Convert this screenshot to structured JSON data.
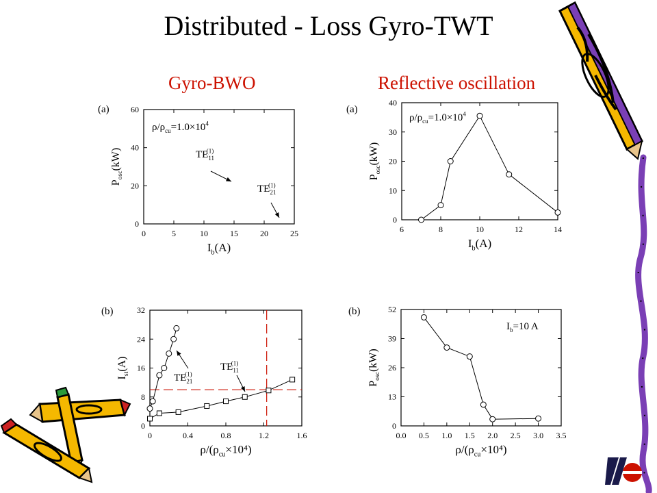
{
  "title": "Distributed - Loss Gyro-TWT",
  "subtitles": {
    "left": "Gyro-BWO",
    "right": "Reflective  oscillation"
  },
  "panel_labels": {
    "tl": "(a)",
    "tr": "(a)",
    "bl": "(b)",
    "br": "(b)"
  },
  "colors": {
    "subtitle": "#cc1100",
    "dashed": "#cc1100",
    "axes": "#000000"
  },
  "decorations": [
    "pencil-icon",
    "pencil-icon",
    "pencil-icon",
    "logo-icon"
  ],
  "chart_data": [
    {
      "id": "tl",
      "type": "scatter",
      "xlim": [
        0,
        25
      ],
      "ylim": [
        0,
        60
      ],
      "xticks": [
        0,
        5,
        10,
        15,
        20,
        25
      ],
      "yticks": [
        0,
        20,
        40,
        60
      ],
      "xlabel_main": "I",
      "xlabel_sub": "b",
      "xlabel_unit": "(A)",
      "ylabel_main": "P",
      "ylabel_sub": "osc",
      "ylabel_unit": "(kW)",
      "series": [],
      "annotations": [
        {
          "text": "ρ/ρ",
          "sub": "cu",
          "rest": "=1.0×10",
          "sup": "4"
        },
        {
          "text": "TE",
          "sub": "11",
          "sup": "(1)"
        },
        {
          "text": "TE",
          "sub": "21",
          "sup": "(1)"
        }
      ]
    },
    {
      "id": "tr",
      "type": "line",
      "xlim": [
        6,
        14
      ],
      "ylim": [
        0,
        40
      ],
      "xticks": [
        6,
        8,
        10,
        12,
        14
      ],
      "yticks": [
        0,
        10,
        20,
        30,
        40
      ],
      "xlabel_main": "I",
      "xlabel_sub": "b",
      "xlabel_unit": "(A)",
      "ylabel_main": "P",
      "ylabel_sub": "osc",
      "ylabel_unit": "(kW)",
      "series": [
        {
          "marker": "circle",
          "x": [
            7,
            8,
            8.5,
            10,
            11.5,
            14
          ],
          "y": [
            0,
            5,
            20,
            35.5,
            15.5,
            2.5
          ]
        }
      ],
      "annotations": [
        {
          "text": "ρ/ρ",
          "sub": "cu",
          "rest": "=1.0×10",
          "sup": "4"
        }
      ]
    },
    {
      "id": "bl",
      "type": "line",
      "xlim": [
        0,
        1.6
      ],
      "ylim": [
        0,
        32
      ],
      "xticks": [
        0,
        0.4,
        0.8,
        1.2,
        1.6
      ],
      "yticks": [
        0,
        8,
        16,
        24,
        32
      ],
      "xlabel_main": "ρ/(ρ",
      "xlabel_sub": "cu",
      "xlabel_unit": "×10⁴)",
      "ylabel_main": "I",
      "ylabel_sub": "st",
      "ylabel_unit": "(A)",
      "series": [
        {
          "marker": "circle",
          "x": [
            0,
            0.03,
            0.1,
            0.15,
            0.2,
            0.25,
            0.28
          ],
          "y": [
            4.8,
            6.8,
            14,
            16,
            20,
            24,
            27
          ]
        },
        {
          "marker": "square",
          "x": [
            0,
            0.1,
            0.3,
            0.6,
            0.8,
            1.0,
            1.25,
            1.5
          ],
          "y": [
            2,
            3.5,
            3.8,
            5.5,
            6.8,
            8,
            9.8,
            12.8
          ]
        }
      ],
      "reference_lines": {
        "x": 1.23,
        "y": 10
      },
      "annotations": [
        {
          "text": "TE",
          "sub": "21",
          "sup": "(1)"
        },
        {
          "text": "TE",
          "sub": "11",
          "sup": "(1)"
        }
      ]
    },
    {
      "id": "br",
      "type": "line",
      "xlim": [
        0,
        3.5
      ],
      "ylim": [
        0,
        52
      ],
      "xticks": [
        0.0,
        0.5,
        1.0,
        1.5,
        2.0,
        2.5,
        3.0,
        3.5
      ],
      "yticks": [
        0,
        13,
        26,
        39,
        52
      ],
      "xlabel_main": "ρ/(ρ",
      "xlabel_sub": "cu",
      "xlabel_unit": "×10⁴)",
      "ylabel_main": "P",
      "ylabel_sub": "osc",
      "ylabel_unit": "(kW)",
      "series": [
        {
          "marker": "circle",
          "x": [
            0.5,
            1.0,
            1.5,
            1.8,
            2.0,
            3.0
          ],
          "y": [
            48.5,
            35,
            31,
            9.5,
            3,
            3.3
          ]
        }
      ],
      "annotations": [
        {
          "text": "I",
          "sub": "b",
          "rest": "=10 A"
        }
      ]
    }
  ]
}
